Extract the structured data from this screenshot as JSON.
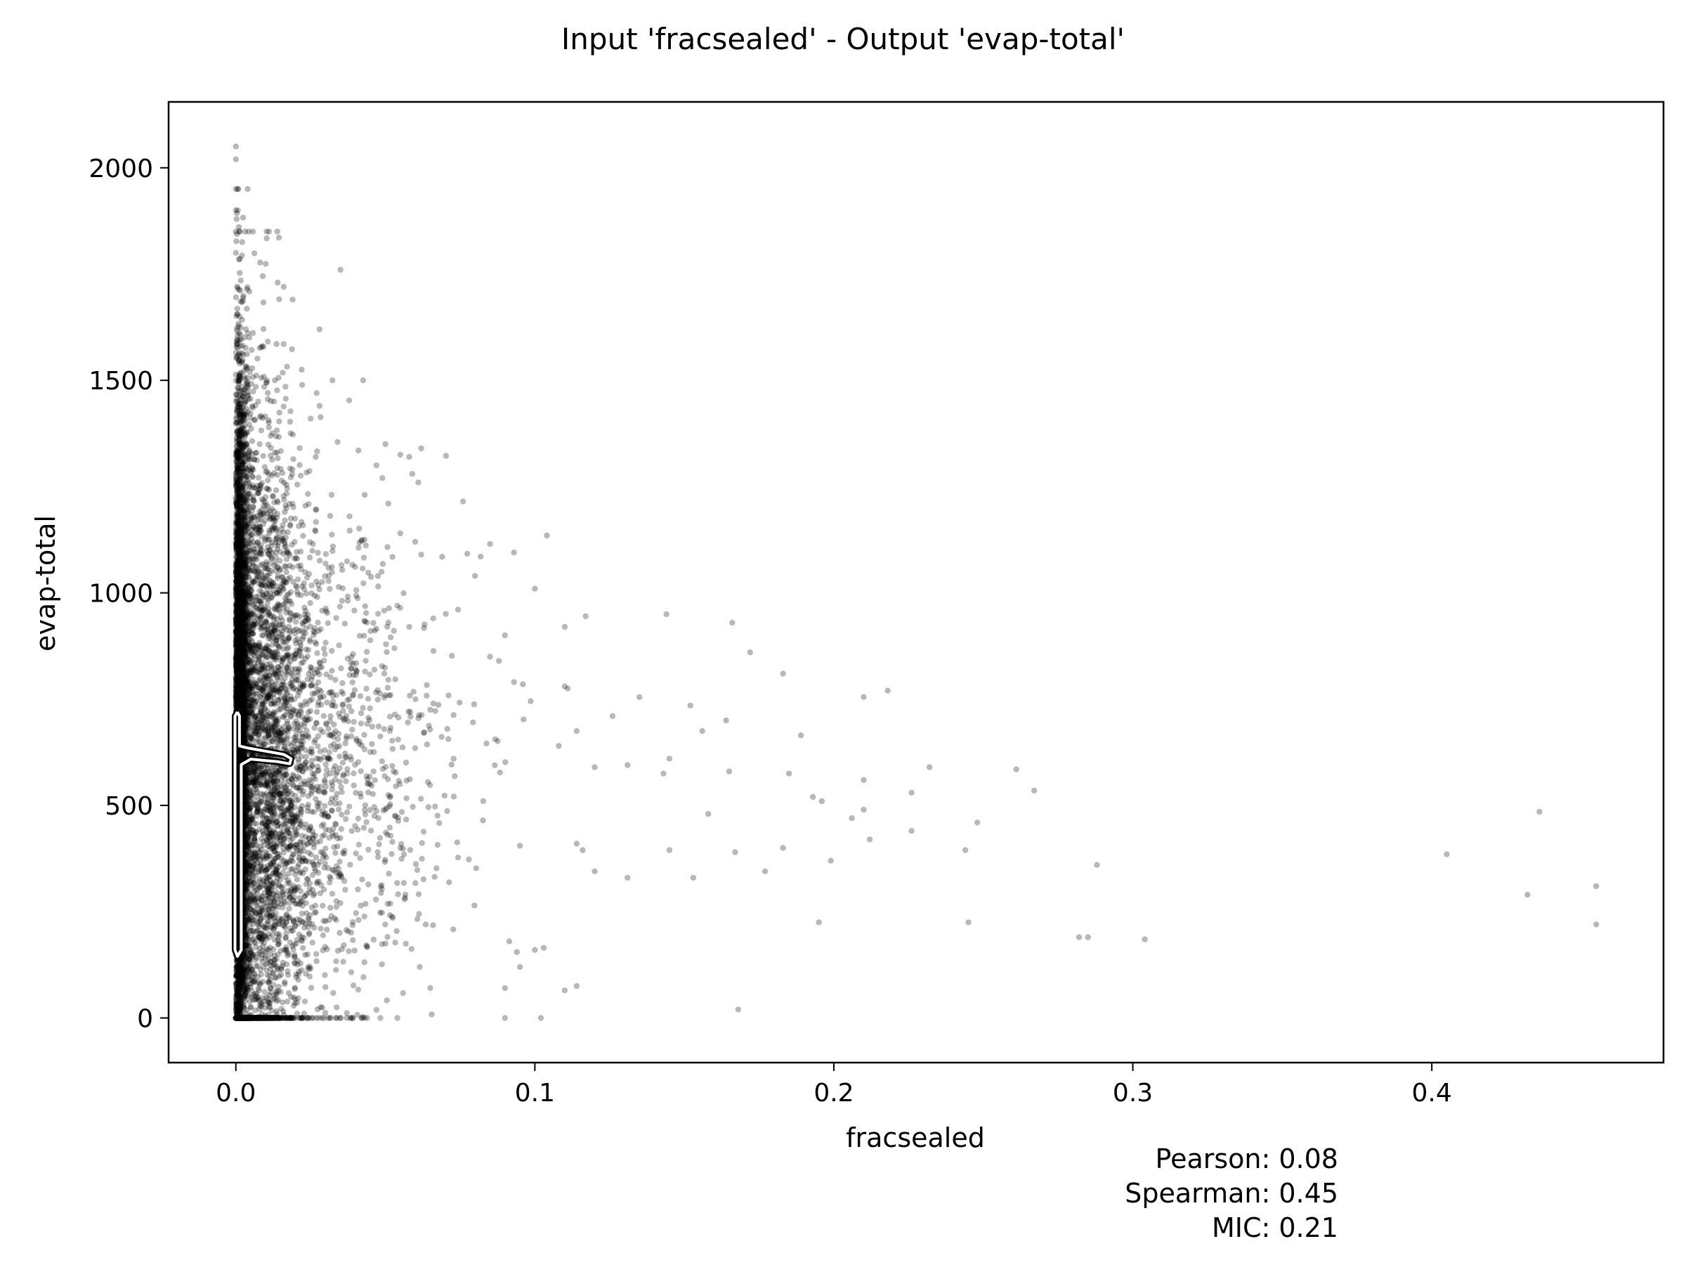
{
  "chart_data": {
    "type": "scatter",
    "title": "Input 'fracsealed' - Output 'evap-total'",
    "xlabel": "fracsealed",
    "ylabel": "evap-total",
    "xlim": [
      -0.0225,
      0.4775
    ],
    "ylim": [
      -105,
      2155
    ],
    "xticks": [
      0.0,
      0.1,
      0.2,
      0.3,
      0.4
    ],
    "xtick_labels": [
      "0.0",
      "0.1",
      "0.2",
      "0.3",
      "0.4"
    ],
    "yticks": [
      0,
      500,
      1000,
      1500,
      2000
    ],
    "ytick_labels": [
      "0",
      "500",
      "1000",
      "1500",
      "2000"
    ],
    "grid": false,
    "series": [
      {
        "color": "#000000",
        "opacity": 0.28,
        "dense_cloud": {
          "description": "several thousand points concentrated at fracsealed 0-0.02, evap-total 0-1950, thinning out to fracsealed ~0.1",
          "x_range": [
            0.0,
            0.12
          ],
          "y_range": [
            0,
            2050
          ]
        },
        "points": [
          [
            0.0,
            2050
          ],
          [
            0.0,
            2020
          ],
          [
            0.0,
            1950
          ],
          [
            0.0,
            1900
          ],
          [
            0.0,
            1850
          ],
          [
            0.0,
            1800
          ],
          [
            0.035,
            1760
          ],
          [
            0.009,
            1745
          ],
          [
            0.014,
            1730
          ],
          [
            0.016,
            1720
          ],
          [
            0.019,
            1690
          ],
          [
            0.028,
            1620
          ],
          [
            0.022,
            1525
          ],
          [
            0.027,
            1470
          ],
          [
            0.028,
            1440
          ],
          [
            0.025,
            1410
          ],
          [
            0.034,
            1355
          ],
          [
            0.041,
            1335
          ],
          [
            0.05,
            1350
          ],
          [
            0.055,
            1325
          ],
          [
            0.058,
            1320
          ],
          [
            0.062,
            1340
          ],
          [
            0.047,
            1300
          ],
          [
            0.059,
            1280
          ],
          [
            0.049,
            1270
          ],
          [
            0.061,
            1260
          ],
          [
            0.038,
            1180
          ],
          [
            0.051,
            1210
          ],
          [
            0.076,
            1215
          ],
          [
            0.043,
            1125
          ],
          [
            0.055,
            1140
          ],
          [
            0.06,
            1120
          ],
          [
            0.085,
            1115
          ],
          [
            0.104,
            1135
          ],
          [
            0.093,
            1095
          ],
          [
            0.069,
            1085
          ],
          [
            0.062,
            1090
          ],
          [
            0.08,
            1040
          ],
          [
            0.1,
            1010
          ],
          [
            0.054,
            970
          ],
          [
            0.051,
            930
          ],
          [
            0.058,
            920
          ],
          [
            0.066,
            940
          ],
          [
            0.09,
            900
          ],
          [
            0.085,
            850
          ],
          [
            0.088,
            840
          ],
          [
            0.093,
            790
          ],
          [
            0.096,
            785
          ],
          [
            0.111,
            775
          ],
          [
            0.11,
            780
          ],
          [
            0.117,
            945
          ],
          [
            0.144,
            950
          ],
          [
            0.166,
            930
          ],
          [
            0.11,
            920
          ],
          [
            0.172,
            860
          ],
          [
            0.183,
            810
          ],
          [
            0.126,
            710
          ],
          [
            0.135,
            755
          ],
          [
            0.152,
            735
          ],
          [
            0.164,
            700
          ],
          [
            0.114,
            675
          ],
          [
            0.108,
            640
          ],
          [
            0.12,
            590
          ],
          [
            0.131,
            595
          ],
          [
            0.143,
            575
          ],
          [
            0.145,
            610
          ],
          [
            0.156,
            675
          ],
          [
            0.158,
            480
          ],
          [
            0.165,
            580
          ],
          [
            0.185,
            575
          ],
          [
            0.189,
            665
          ],
          [
            0.193,
            520
          ],
          [
            0.196,
            510
          ],
          [
            0.21,
            755
          ],
          [
            0.218,
            770
          ],
          [
            0.226,
            530
          ],
          [
            0.232,
            590
          ],
          [
            0.21,
            560
          ],
          [
            0.21,
            490
          ],
          [
            0.206,
            470
          ],
          [
            0.212,
            420
          ],
          [
            0.226,
            440
          ],
          [
            0.244,
            395
          ],
          [
            0.248,
            460
          ],
          [
            0.261,
            585
          ],
          [
            0.267,
            535
          ],
          [
            0.245,
            225
          ],
          [
            0.195,
            225
          ],
          [
            0.177,
            345
          ],
          [
            0.199,
            370
          ],
          [
            0.183,
            400
          ],
          [
            0.167,
            390
          ],
          [
            0.153,
            330
          ],
          [
            0.145,
            395
          ],
          [
            0.131,
            330
          ],
          [
            0.12,
            345
          ],
          [
            0.116,
            395
          ],
          [
            0.114,
            410
          ],
          [
            0.095,
            405
          ],
          [
            0.094,
            155
          ],
          [
            0.1,
            160
          ],
          [
            0.103,
            165
          ],
          [
            0.11,
            65
          ],
          [
            0.114,
            75
          ],
          [
            0.09,
            70
          ],
          [
            0.095,
            120
          ],
          [
            0.168,
            20
          ],
          [
            0.09,
            0
          ],
          [
            0.102,
            0
          ],
          [
            0.054,
            0
          ],
          [
            0.042,
            0
          ],
          [
            0.282,
            190
          ],
          [
            0.285,
            190
          ],
          [
            0.288,
            360
          ],
          [
            0.304,
            185
          ],
          [
            0.405,
            385
          ],
          [
            0.432,
            290
          ],
          [
            0.436,
            485
          ],
          [
            0.455,
            310
          ],
          [
            0.455,
            220
          ]
        ]
      }
    ],
    "contour": {
      "color": "#ffffff",
      "description": "white outline of a high-density region at fracsealed ~0-0.02, evap-total ~145-720",
      "points": [
        [
          0.0005,
          720
        ],
        [
          0.0012,
          710
        ],
        [
          0.0012,
          640
        ],
        [
          0.004,
          635
        ],
        [
          0.008,
          630
        ],
        [
          0.012,
          625
        ],
        [
          0.016,
          620
        ],
        [
          0.0185,
          610
        ],
        [
          0.018,
          598
        ],
        [
          0.014,
          603
        ],
        [
          0.009,
          606
        ],
        [
          0.005,
          609
        ],
        [
          0.0018,
          596
        ],
        [
          0.0018,
          160
        ],
        [
          0.0005,
          145
        ],
        [
          -0.0003,
          160
        ],
        [
          -0.0003,
          710
        ],
        [
          0.0005,
          720
        ]
      ]
    },
    "annotations": [
      "Pearson: 0.08",
      "Spearman: 0.45",
      "MIC: 0.21"
    ]
  }
}
